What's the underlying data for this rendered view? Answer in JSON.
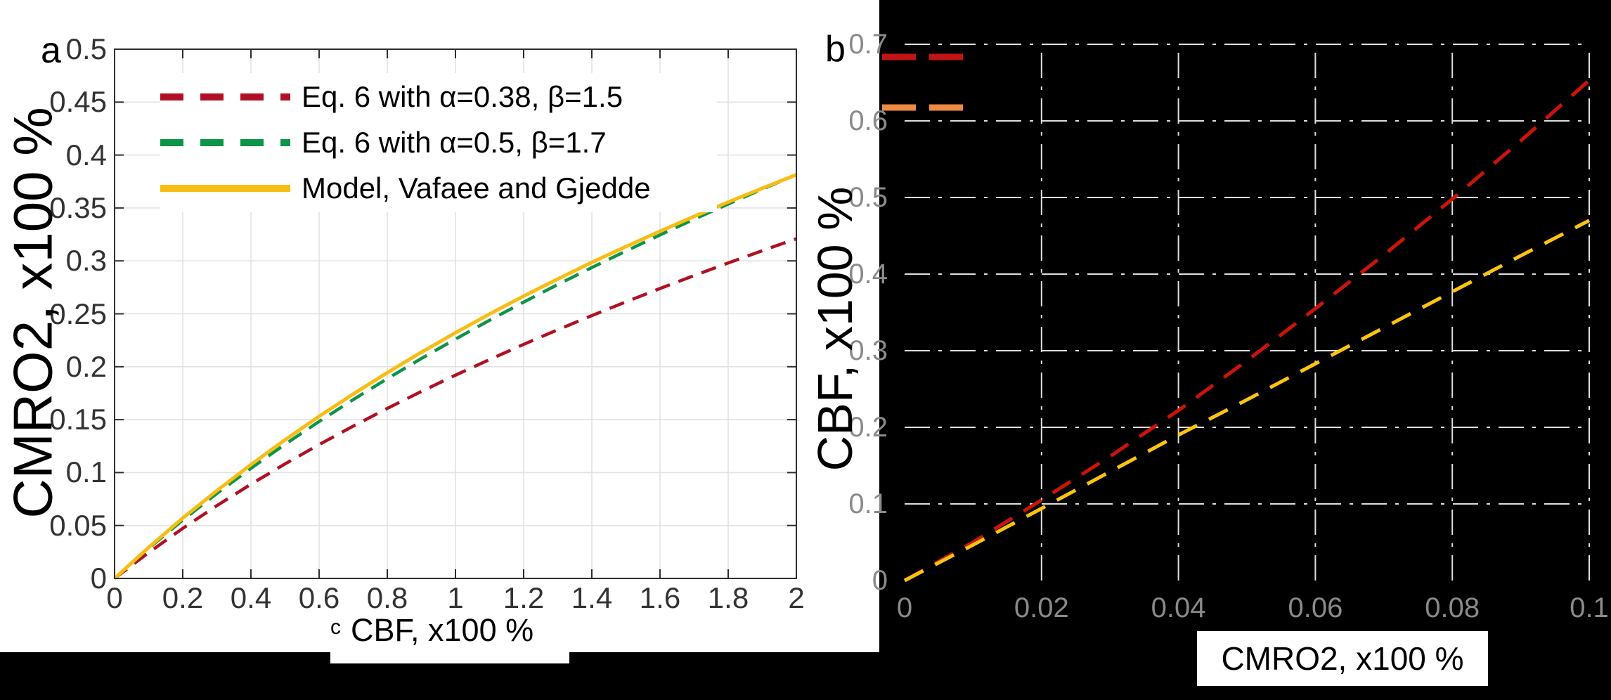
{
  "figure": {
    "background": "#000000",
    "panel_background": "#ffffff",
    "frame_color": "#2f2f2f",
    "grid_color_a": "#e2e2e2",
    "grid_color_b": "#dedede",
    "tick_label_color_a": "#333333",
    "tick_label_color_b": "#8a8a8a"
  },
  "panels": {
    "a": {
      "letter": "a",
      "xlabel_prefix": "c",
      "xlabel": "CBF, x100 %",
      "ylabel": "CMRO2, x100 %"
    },
    "b": {
      "letter": "b",
      "xlabel": "CMRO2, x100 %",
      "ylabel": "CBF, x100 %"
    }
  },
  "chart_data": [
    {
      "id": "a",
      "type": "line",
      "title": "",
      "xlabel": "CBF, x100 %",
      "ylabel": "CMRO2, x100 %",
      "xlim": [
        0,
        2
      ],
      "ylim": [
        0,
        0.5
      ],
      "xticks": [
        0,
        0.2,
        0.4,
        0.6,
        0.8,
        1,
        1.2,
        1.4,
        1.6,
        1.8,
        2
      ],
      "xtick_labels": [
        "0",
        "0.2",
        "0.4",
        "0.6",
        "0.8",
        "1",
        "1.2",
        "1.4",
        "1.6",
        "1.8",
        "2"
      ],
      "yticks": [
        0,
        0.05,
        0.1,
        0.15,
        0.2,
        0.25,
        0.3,
        0.35,
        0.4,
        0.45,
        0.5
      ],
      "ytick_labels": [
        "0",
        "0.05",
        "0.1",
        "0.15",
        "0.2",
        "0.25",
        "0.3",
        "0.35",
        "0.4",
        "0.45",
        "0.5"
      ],
      "grid": true,
      "legend_position": "top-left",
      "background": "#ffffff",
      "x": [
        0,
        0.1,
        0.2,
        0.3,
        0.4,
        0.5,
        0.6,
        0.7,
        0.8,
        0.9,
        1.0,
        1.1,
        1.2,
        1.3,
        1.4,
        1.5,
        1.6,
        1.7,
        1.8,
        1.9,
        2.0
      ],
      "series": [
        {
          "name": "Eq. 6 with α=0.38, β=1.5",
          "color": "#b01122",
          "style": "dashed",
          "values": [
            0,
            0.0244,
            0.0473,
            0.0687,
            0.089,
            0.1082,
            0.1264,
            0.1439,
            0.1606,
            0.1766,
            0.192,
            0.2068,
            0.2211,
            0.2349,
            0.2483,
            0.2613,
            0.2739,
            0.2861,
            0.298,
            0.3096,
            0.3209
          ]
        },
        {
          "name": "Eq. 6 with α=0.5, β=1.7",
          "color": "#0c9447",
          "style": "dashed",
          "values": [
            0,
            0.0284,
            0.0551,
            0.0802,
            0.104,
            0.1267,
            0.1482,
            0.1689,
            0.1887,
            0.2078,
            0.2261,
            0.2439,
            0.261,
            0.2776,
            0.2937,
            0.3093,
            0.3245,
            0.3393,
            0.3537,
            0.3677,
            0.3814
          ]
        },
        {
          "name": "Model, Vafaee and Gjedde",
          "color": "#f8bd13",
          "style": "solid",
          "values": [
            0,
            0.0293,
            0.057,
            0.0829,
            0.1075,
            0.1309,
            0.1531,
            0.1742,
            0.1944,
            0.2137,
            0.2321,
            0.2498,
            0.2667,
            0.2829,
            0.2986,
            0.3135,
            0.328,
            0.342,
            0.3556,
            0.3686,
            0.3814
          ]
        }
      ]
    },
    {
      "id": "b",
      "type": "line",
      "title": "",
      "xlabel": "CMRO2, x100 %",
      "ylabel": "CBF, x100 %",
      "xlim": [
        0,
        0.1
      ],
      "ylim": [
        0,
        0.7
      ],
      "xticks": [
        0,
        0.02,
        0.04,
        0.06,
        0.08,
        0.1
      ],
      "xtick_labels": [
        "0",
        "0.02",
        "0.04",
        "0.06",
        "0.08",
        "0.1"
      ],
      "yticks": [
        0,
        0.1,
        0.2,
        0.3,
        0.4,
        0.5,
        0.6,
        0.7
      ],
      "ytick_labels": [
        "0",
        "0.1",
        "0.2",
        "0.3",
        "0.4",
        "0.5",
        "0.6",
        "0.7"
      ],
      "grid": true,
      "legend_position": "top-left",
      "background": "#000000",
      "x": [
        0,
        0.01,
        0.02,
        0.03,
        0.04,
        0.05,
        0.06,
        0.07,
        0.08,
        0.09,
        0.1
      ],
      "series": [
        {
          "name": "",
          "color": "#cc1408",
          "style": "dashed",
          "values": [
            0,
            0.05,
            0.105,
            0.162,
            0.222,
            0.287,
            0.355,
            0.425,
            0.498,
            0.574,
            0.653
          ]
        },
        {
          "name": "",
          "color": "#fdc40f",
          "style": "dashed",
          "values": [
            0,
            0.0465,
            0.094,
            0.142,
            0.19,
            0.236,
            0.283,
            0.33,
            0.377,
            0.424,
            0.47
          ]
        }
      ],
      "legend_swatches": [
        {
          "label": "",
          "color": "#c21414"
        },
        {
          "label": "",
          "color": "#ee8a44"
        }
      ]
    }
  ]
}
